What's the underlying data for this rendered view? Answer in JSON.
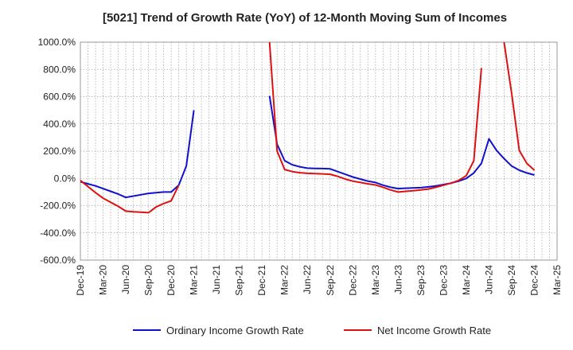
{
  "chart_data": {
    "type": "line",
    "title": "[5021]  Trend of Growth Rate (YoY) of 12-Month Moving Sum of Incomes",
    "xlabel": "",
    "ylabel": "",
    "ylim": [
      -600,
      1000
    ],
    "yticks": [
      "1000.0%",
      "800.0%",
      "600.0%",
      "400.0%",
      "200.0%",
      "0.0%",
      "-200.0%",
      "-400.0%",
      "-600.0%"
    ],
    "ytick_values": [
      1000,
      800,
      600,
      400,
      200,
      0,
      -200,
      -400,
      -600
    ],
    "xticks": [
      "Dec-19",
      "Mar-20",
      "Jun-20",
      "Sep-20",
      "Dec-20",
      "Mar-21",
      "Jun-21",
      "Sep-21",
      "Dec-21",
      "Mar-22",
      "Jun-22",
      "Sep-22",
      "Dec-22",
      "Mar-23",
      "Jun-23",
      "Sep-23",
      "Dec-23",
      "Mar-24",
      "Jun-24",
      "Sep-24",
      "Dec-24",
      "Mar-25"
    ],
    "grid": true,
    "legend_position": "bottom",
    "series": [
      {
        "name": "Ordinary Income Growth Rate",
        "color": "#1111cc",
        "points": [
          [
            "Dec-19",
            -25
          ],
          [
            "Jan-20",
            -40
          ],
          [
            "Feb-20",
            -55
          ],
          [
            "Mar-20",
            -75
          ],
          [
            "Apr-20",
            -95
          ],
          [
            "May-20",
            -115
          ],
          [
            "Jun-20",
            -140
          ],
          [
            "Jul-20",
            -130
          ],
          [
            "Aug-20",
            -120
          ],
          [
            "Sep-20",
            -110
          ],
          [
            "Oct-20",
            -105
          ],
          [
            "Nov-20",
            -100
          ],
          [
            "Dec-20",
            -100
          ],
          [
            "Jan-21",
            -50
          ],
          [
            "Feb-21",
            90
          ],
          [
            "Mar-21",
            500
          ],
          null,
          [
            "Jan-22",
            605
          ],
          [
            "Feb-22",
            250
          ],
          [
            "Mar-22",
            130
          ],
          [
            "Apr-22",
            100
          ],
          [
            "May-22",
            85
          ],
          [
            "Jun-22",
            75
          ],
          [
            "Jul-22",
            73
          ],
          [
            "Aug-22",
            72
          ],
          [
            "Sep-22",
            70
          ],
          [
            "Oct-22",
            50
          ],
          [
            "Nov-22",
            30
          ],
          [
            "Dec-22",
            10
          ],
          [
            "Jan-23",
            -5
          ],
          [
            "Feb-23",
            -20
          ],
          [
            "Mar-23",
            -30
          ],
          [
            "Apr-23",
            -50
          ],
          [
            "May-23",
            -65
          ],
          [
            "Jun-23",
            -75
          ],
          [
            "Jul-23",
            -72
          ],
          [
            "Aug-23",
            -70
          ],
          [
            "Sep-23",
            -68
          ],
          [
            "Oct-23",
            -62
          ],
          [
            "Nov-23",
            -55
          ],
          [
            "Dec-23",
            -45
          ],
          [
            "Jan-24",
            -35
          ],
          [
            "Feb-24",
            -20
          ],
          [
            "Mar-24",
            0
          ],
          [
            "Apr-24",
            40
          ],
          [
            "May-24",
            110
          ],
          [
            "Jun-24",
            290
          ],
          [
            "Jul-24",
            205
          ],
          [
            "Aug-24",
            145
          ],
          [
            "Sep-24",
            90
          ],
          [
            "Oct-24",
            60
          ],
          [
            "Nov-24",
            40
          ],
          [
            "Dec-24",
            25
          ]
        ]
      },
      {
        "name": "Net Income Growth Rate",
        "color": "#dd1111",
        "points": [
          [
            "Dec-19",
            -15
          ],
          [
            "Jan-20",
            -60
          ],
          [
            "Feb-20",
            -105
          ],
          [
            "Mar-20",
            -145
          ],
          [
            "Apr-20",
            -175
          ],
          [
            "May-20",
            -205
          ],
          [
            "Jun-20",
            -240
          ],
          [
            "Jul-20",
            -245
          ],
          [
            "Aug-20",
            -248
          ],
          [
            "Sep-20",
            -252
          ],
          [
            "Oct-20",
            -210
          ],
          [
            "Nov-20",
            -185
          ],
          [
            "Dec-20",
            -165
          ],
          [
            "Jan-21",
            -50
          ],
          null,
          [
            "Jan-22",
            1000
          ],
          [
            "Feb-22",
            200
          ],
          [
            "Mar-22",
            65
          ],
          [
            "Apr-22",
            50
          ],
          [
            "May-22",
            42
          ],
          [
            "Jun-22",
            37
          ],
          [
            "Jul-22",
            35
          ],
          [
            "Aug-22",
            33
          ],
          [
            "Sep-22",
            30
          ],
          [
            "Oct-22",
            15
          ],
          [
            "Nov-22",
            -5
          ],
          [
            "Dec-22",
            -20
          ],
          [
            "Jan-23",
            -30
          ],
          [
            "Feb-23",
            -40
          ],
          [
            "Mar-23",
            -48
          ],
          [
            "Apr-23",
            -65
          ],
          [
            "May-23",
            -85
          ],
          [
            "Jun-23",
            -100
          ],
          [
            "Jul-23",
            -95
          ],
          [
            "Aug-23",
            -90
          ],
          [
            "Sep-23",
            -85
          ],
          [
            "Oct-23",
            -78
          ],
          [
            "Nov-23",
            -65
          ],
          [
            "Dec-23",
            -50
          ],
          [
            "Jan-24",
            -35
          ],
          [
            "Feb-24",
            -15
          ],
          [
            "Mar-24",
            20
          ],
          [
            "Apr-24",
            130
          ],
          [
            "May-24",
            810
          ],
          null,
          [
            "Aug-24",
            1000
          ],
          [
            "Sep-24",
            620
          ],
          [
            "Oct-24",
            205
          ],
          [
            "Nov-24",
            110
          ],
          [
            "Dec-24",
            60
          ]
        ]
      }
    ]
  }
}
